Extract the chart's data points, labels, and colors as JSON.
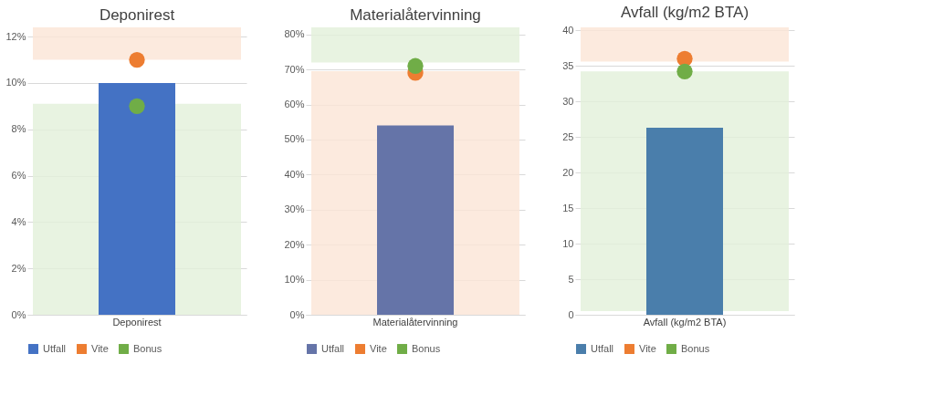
{
  "chart_data": [
    {
      "type": "bar",
      "title": "Deponirest",
      "categories": [
        "Deponirest"
      ],
      "series": [
        {
          "name": "Utfall",
          "type": "bar",
          "color": "#4472c4",
          "values": [
            10.0
          ]
        },
        {
          "name": "Vite",
          "type": "scatter",
          "color": "#ed7d31",
          "values": [
            11.0
          ]
        },
        {
          "name": "Bonus",
          "type": "scatter",
          "color": "#70ad47",
          "values": [
            9.0
          ]
        }
      ],
      "ylim": [
        0,
        12.4
      ],
      "yticks": [
        {
          "value": 0,
          "label": "0%"
        },
        {
          "value": 2,
          "label": "2%"
        },
        {
          "value": 4,
          "label": "4%"
        },
        {
          "value": 6,
          "label": "6%"
        },
        {
          "value": 8,
          "label": "8%"
        },
        {
          "value": 10,
          "label": "10%"
        },
        {
          "value": 12,
          "label": "12%"
        }
      ],
      "bands": [
        {
          "axis": "y",
          "from": 11.0,
          "to": 12.4,
          "color": "#fbe5d6"
        },
        {
          "axis": "y",
          "from": 0,
          "to": 9.1,
          "color": "#e2f0d9"
        }
      ],
      "grid": "y",
      "legend": "bottom",
      "marker": "circle"
    },
    {
      "type": "bar",
      "title": "Materialåtervinning",
      "categories": [
        "Materialåtervinning"
      ],
      "series": [
        {
          "name": "Utfall",
          "type": "bar",
          "color": "#6574a8",
          "values": [
            54
          ]
        },
        {
          "name": "Vite",
          "type": "scatter",
          "color": "#ed7d31",
          "values": [
            69
          ]
        },
        {
          "name": "Bonus",
          "type": "scatter",
          "color": "#70ad47",
          "values": [
            71
          ]
        }
      ],
      "ylim": [
        0,
        82
      ],
      "yticks": [
        {
          "value": 0,
          "label": "0%"
        },
        {
          "value": 10,
          "label": "10%"
        },
        {
          "value": 20,
          "label": "20%"
        },
        {
          "value": 30,
          "label": "30%"
        },
        {
          "value": 40,
          "label": "40%"
        },
        {
          "value": 50,
          "label": "50%"
        },
        {
          "value": 60,
          "label": "60%"
        },
        {
          "value": 70,
          "label": "70%"
        },
        {
          "value": 80,
          "label": "80%"
        }
      ],
      "bands": [
        {
          "axis": "y",
          "from": 72,
          "to": 82,
          "color": "#e2f0d9"
        },
        {
          "axis": "y",
          "from": 0,
          "to": 69.5,
          "color": "#fbe5d6"
        }
      ],
      "grid": "y",
      "legend": "bottom",
      "marker": "circle"
    },
    {
      "type": "bar",
      "title": "Avfall (kg/m2 BTA)",
      "categories": [
        "Avfall (kg/m2 BTA)"
      ],
      "series": [
        {
          "name": "Utfall",
          "type": "bar",
          "color": "#4a7eab",
          "values": [
            26.3
          ]
        },
        {
          "name": "Vite",
          "type": "scatter",
          "color": "#ed7d31",
          "values": [
            36
          ]
        },
        {
          "name": "Bonus",
          "type": "scatter",
          "color": "#70ad47",
          "values": [
            34.2
          ]
        }
      ],
      "ylim": [
        0,
        40.4
      ],
      "yticks": [
        0,
        5,
        10,
        15,
        20,
        25,
        30,
        35,
        40
      ],
      "bands": [
        {
          "axis": "y",
          "from": 35.6,
          "to": 40.4,
          "color": "#fbe5d6"
        },
        {
          "axis": "y",
          "from": 0.5,
          "to": 34.2,
          "color": "#e2f0d9"
        }
      ],
      "grid": "y",
      "legend": "bottom",
      "marker": "circle"
    }
  ]
}
